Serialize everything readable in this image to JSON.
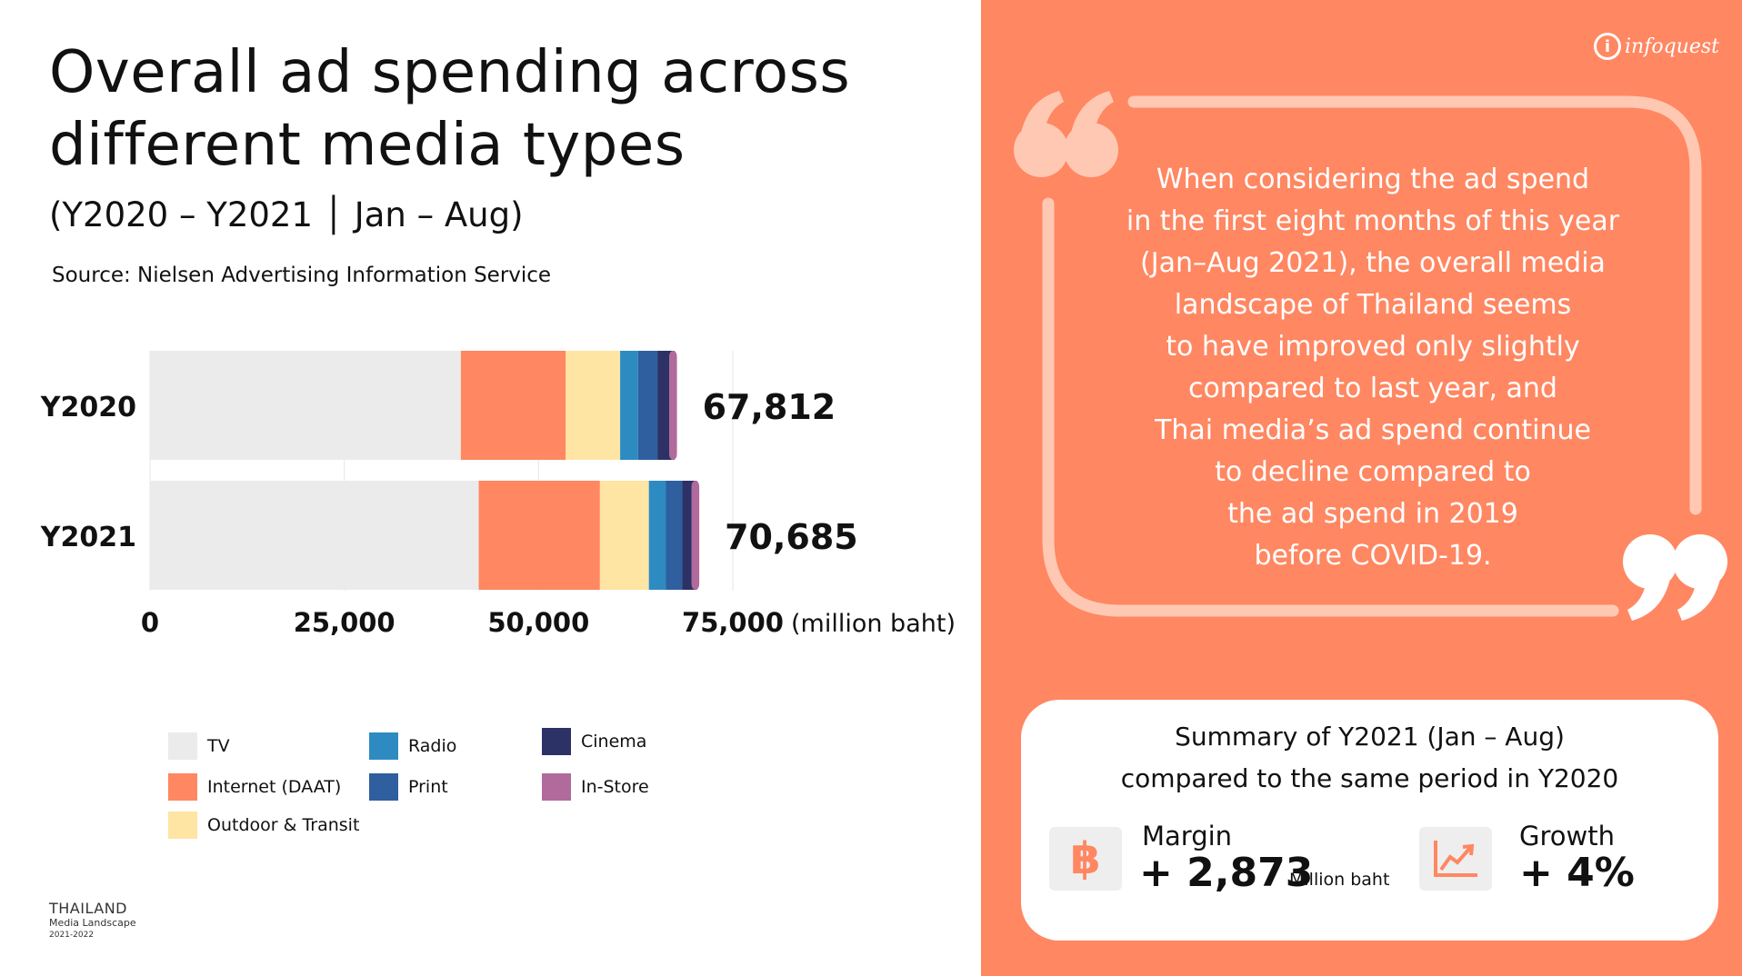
{
  "header": {
    "title_line1": "Overall ad spending across",
    "title_line2": "different media types",
    "subtitle": "(Y2020 – Y2021 │ Jan – Aug)",
    "source": "Source: Nielsen Advertising Information Service"
  },
  "chart_data": {
    "type": "bar",
    "orientation": "horizontal",
    "stacked": true,
    "title": "Overall ad spending across different media types",
    "categories": [
      "Y2020",
      "Y2021"
    ],
    "totals": [
      67812,
      70685
    ],
    "total_labels": [
      "67,812",
      "70,685"
    ],
    "series": [
      {
        "name": "TV",
        "color": "#ebebeb",
        "values": [
          40000,
          42300
        ]
      },
      {
        "name": "Internet (DAAT)",
        "color": "#ff8762",
        "values": [
          13500,
          15600
        ]
      },
      {
        "name": "Outdoor & Transit",
        "color": "#ffe5a3",
        "values": [
          7000,
          6300
        ]
      },
      {
        "name": "Radio",
        "color": "#2e8bc2",
        "values": [
          2300,
          2200
        ]
      },
      {
        "name": "Print",
        "color": "#2f5f9e",
        "values": [
          2500,
          2100
        ]
      },
      {
        "name": "Cinema",
        "color": "#2c3166",
        "values": [
          2212,
          1885
        ]
      },
      {
        "name": "In-Store",
        "color": "#b06a9c",
        "values": [
          300,
          300
        ]
      }
    ],
    "xlim": [
      0,
      75000
    ],
    "xticks": [
      0,
      25000,
      50000,
      75000
    ],
    "xtick_labels": [
      "0",
      "25,000",
      "50,000",
      "75,000"
    ],
    "xlabel": "(million baht)",
    "legend_position": "bottom"
  },
  "legend": [
    {
      "label": "TV",
      "color": "#ebebeb"
    },
    {
      "label": "Internet (DAAT)",
      "color": "#ff8762"
    },
    {
      "label": "Outdoor & Transit",
      "color": "#ffe5a3"
    },
    {
      "label": "Radio",
      "color": "#2e8bc2"
    },
    {
      "label": "Print",
      "color": "#2f5f9e"
    },
    {
      "label": "Cinema",
      "color": "#2c3166"
    },
    {
      "label": "In-Store",
      "color": "#b06a9c"
    }
  ],
  "brand": {
    "line1": "THAILAND",
    "line2": "Media Landscape",
    "line3": "2021-2022"
  },
  "logo": {
    "icon": "i",
    "text": "infoquest"
  },
  "quote": {
    "lines": [
      "When considering the ad spend",
      "in the first eight months of this year",
      "(Jan–Aug 2021), the overall media",
      "landscape of Thailand seems",
      "to have improved only slightly",
      "compared to last year, and",
      "Thai media’s ad spend continue",
      "to decline compared to",
      "the ad spend in 2019",
      "before COVID-19."
    ]
  },
  "summary": {
    "title_line1": "Summary of Y2021 (Jan – Aug)",
    "title_line2": "compared to the same period in Y2020",
    "margin_label": "Margin",
    "margin_value": "+ 2,873",
    "margin_unit": "Million baht",
    "growth_label": "Growth",
    "growth_value": "+ 4%",
    "baht_symbol": "฿",
    "icons": [
      "baht-icon",
      "growth-chart-icon"
    ]
  },
  "colors": {
    "accent": "#ff8762",
    "quote_frame": "#ffc8b3"
  }
}
